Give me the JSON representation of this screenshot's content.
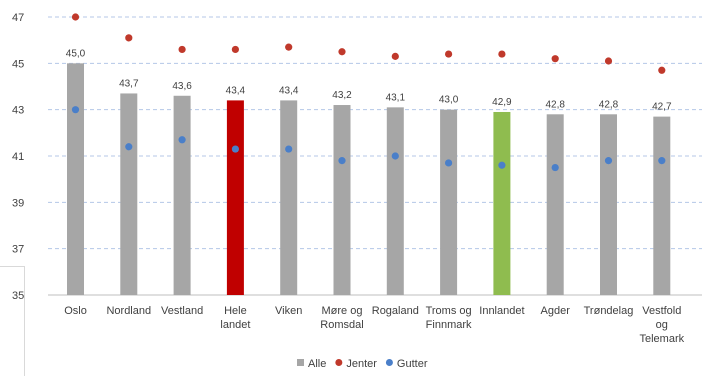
{
  "chart_data": {
    "type": "bar",
    "categories": [
      [
        "Oslo"
      ],
      [
        "Nordland"
      ],
      [
        "Vestland"
      ],
      [
        "Hele",
        "landet"
      ],
      [
        "Viken"
      ],
      [
        "Møre og",
        "Romsdal"
      ],
      [
        "Rogaland"
      ],
      [
        "Troms og",
        "Finnmark"
      ],
      [
        "Innlandet"
      ],
      [
        "Agder"
      ],
      [
        "Trøndelag"
      ],
      [
        "Vestfold",
        "og",
        "Telemark"
      ]
    ],
    "series": [
      {
        "name": "Alle",
        "kind": "bar",
        "color": "#a6a6a6",
        "values": [
          45.0,
          43.7,
          43.6,
          43.4,
          43.4,
          43.2,
          43.1,
          43.0,
          42.9,
          42.8,
          42.8,
          42.7
        ],
        "value_labels": [
          "45,0",
          "43,7",
          "43,6",
          "43,4",
          "43,4",
          "43,2",
          "43,1",
          "43,0",
          "42,9",
          "42,8",
          "42,8",
          "42,7"
        ]
      },
      {
        "name": "Jenter",
        "kind": "marker",
        "color": "#c0392b",
        "values": [
          47.0,
          46.1,
          45.6,
          45.6,
          45.7,
          45.5,
          45.3,
          45.4,
          45.4,
          45.2,
          45.1,
          44.7
        ]
      },
      {
        "name": "Gutter",
        "kind": "marker",
        "color": "#4a7fc9",
        "values": [
          43.0,
          41.4,
          41.7,
          41.3,
          41.3,
          40.8,
          41.0,
          40.7,
          40.6,
          40.5,
          40.8,
          40.8
        ]
      }
    ],
    "bar_highlights": {
      "3": "#c00000",
      "8": "#8fbc4f"
    },
    "yticks": [
      "35",
      "37",
      "39",
      "41",
      "43",
      "45",
      "47"
    ],
    "ylim": [
      35,
      47
    ],
    "grid": true,
    "legend": "bottom"
  }
}
